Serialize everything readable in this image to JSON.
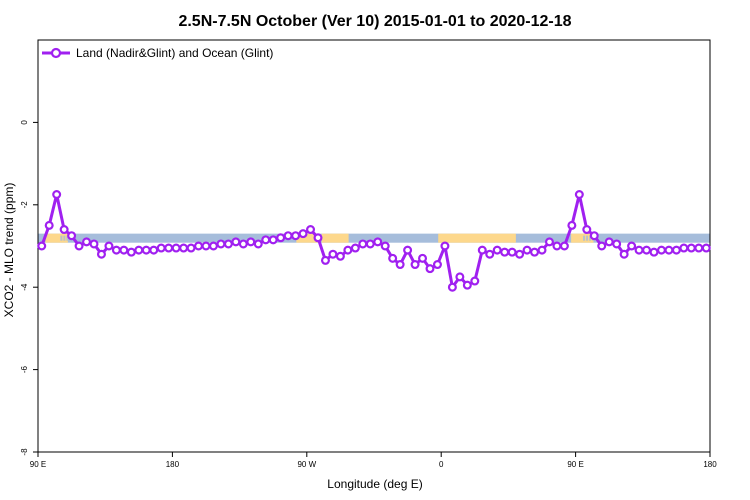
{
  "chart_data": {
    "type": "line",
    "title": "2.5N-7.5N October (Ver 10)   2015-01-01 to 2020-12-18",
    "xlabel": "Longitude (deg E)",
    "ylabel": "XCO2 - MLO trend (ppm)",
    "xlim": [
      90,
      540
    ],
    "ylim": [
      -8,
      2
    ],
    "x_ticks": [
      {
        "value": 90,
        "label": "90 E"
      },
      {
        "value": 180,
        "label": "180"
      },
      {
        "value": 270,
        "label": "90 W"
      },
      {
        "value": 360,
        "label": "0"
      },
      {
        "value": 450,
        "label": "90 E"
      },
      {
        "value": 540,
        "label": "180"
      }
    ],
    "y_ticks": [
      {
        "value": 0,
        "label": "0"
      },
      {
        "value": -2,
        "label": "-2"
      },
      {
        "value": -4,
        "label": "-4"
      },
      {
        "value": -6,
        "label": "-6"
      },
      {
        "value": -8,
        "label": "-8"
      }
    ],
    "legend": {
      "position": "top-left"
    },
    "grid": false,
    "series": [
      {
        "name": "Land (Nadir&Glint) and Ocean (Glint)",
        "color": "#a020f0",
        "marker": "open-circle",
        "x": [
          92.5,
          97.5,
          102.5,
          107.5,
          112.5,
          117.5,
          122.5,
          127.5,
          132.5,
          137.5,
          142.5,
          147.5,
          152.5,
          157.5,
          162.5,
          167.5,
          172.5,
          177.5,
          182.5,
          187.5,
          192.5,
          197.5,
          202.5,
          207.5,
          212.5,
          217.5,
          222.5,
          227.5,
          232.5,
          237.5,
          242.5,
          247.5,
          252.5,
          257.5,
          262.5,
          267.5,
          272.5,
          277.5,
          282.5,
          287.5,
          292.5,
          297.5,
          302.5,
          307.5,
          312.5,
          317.5,
          322.5,
          327.5,
          332.5,
          337.5,
          342.5,
          347.5,
          352.5,
          357.5,
          362.5,
          367.5,
          372.5,
          377.5,
          382.5,
          387.5,
          392.5,
          397.5,
          402.5,
          407.5,
          412.5,
          417.5,
          422.5,
          427.5,
          432.5,
          437.5,
          442.5,
          447.5,
          452.5,
          457.5,
          462.5,
          467.5,
          472.5,
          477.5,
          482.5,
          487.5,
          492.5,
          497.5,
          502.5,
          507.5,
          512.5,
          517.5,
          522.5,
          527.5,
          532.5,
          537.5
        ],
        "values": [
          -3.0,
          -2.5,
          -1.75,
          -2.6,
          -2.75,
          -3.0,
          -2.9,
          -2.95,
          -3.2,
          -3.0,
          -3.1,
          -3.1,
          -3.15,
          -3.1,
          -3.1,
          -3.1,
          -3.05,
          -3.05,
          -3.05,
          -3.05,
          -3.05,
          -3.0,
          -3.0,
          -3.0,
          -2.95,
          -2.95,
          -2.9,
          -2.95,
          -2.9,
          -2.95,
          -2.85,
          -2.85,
          -2.8,
          -2.75,
          -2.75,
          -2.7,
          -2.6,
          -2.8,
          -3.35,
          -3.2,
          -3.25,
          -3.1,
          -3.05,
          -2.95,
          -2.95,
          -2.9,
          -3.0,
          -3.3,
          -3.45,
          -3.1,
          -3.45,
          -3.3,
          -3.55,
          -3.45,
          -3.0,
          -4.0,
          -3.75,
          -3.95,
          -3.85,
          -3.1,
          -3.2,
          -3.1,
          -3.15,
          -3.15,
          -3.2,
          -3.1,
          -3.15,
          -3.1,
          -2.9,
          -3.0,
          -3.0,
          -2.5,
          -1.75,
          -2.6,
          -2.75,
          -3.0,
          -2.9,
          -2.95,
          -3.2,
          -3.0,
          -3.1,
          -3.1,
          -3.15,
          -3.1,
          -3.1,
          -3.1,
          -3.05,
          -3.05,
          -3.05,
          -3.05
        ]
      }
    ],
    "surface_band": {
      "y_range": [
        -2.92,
        -2.7
      ],
      "ocean_color": "#a6bddb",
      "land_color": "#fdd88c",
      "land_spans": [
        [
          95,
          110
        ],
        [
          263,
          278
        ],
        [
          280,
          298
        ],
        [
          358,
          410
        ],
        [
          447,
          462
        ]
      ],
      "mixed_spans": [
        [
          105,
          115
        ],
        [
          455,
          465
        ]
      ]
    }
  }
}
